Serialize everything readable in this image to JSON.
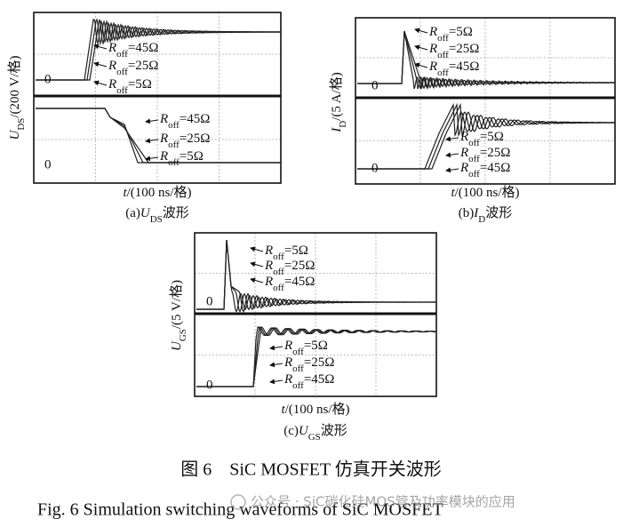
{
  "panels": [
    {
      "y_label": {
        "symbol": "U",
        "sub": "DS",
        "unit": "/(200 V/格)"
      },
      "zero_top": "0",
      "zero_bottom": "0",
      "top_labels": [
        {
          "symbol": "R",
          "sub": "off",
          "value": "=45Ω"
        },
        {
          "symbol": "R",
          "sub": "off",
          "value": "=25Ω"
        },
        {
          "symbol": "R",
          "sub": "off",
          "value": "=5Ω"
        }
      ],
      "bottom_labels": [
        {
          "symbol": "R",
          "sub": "off",
          "value": "=45Ω"
        },
        {
          "symbol": "R",
          "sub": "off",
          "value": "=25Ω"
        },
        {
          "symbol": "R",
          "sub": "off",
          "value": "=5Ω"
        }
      ],
      "x_label": {
        "symbol": "t",
        "unit": "/(100 ns/格)"
      },
      "caption": {
        "prefix": "(a)",
        "symbol": "U",
        "sub": "DS",
        "suffix": "波形"
      }
    },
    {
      "y_label": {
        "symbol": "I",
        "sub": "D",
        "unit": "/(5 A/格)"
      },
      "zero_top": "0",
      "zero_bottom": "0",
      "top_labels": [
        {
          "symbol": "R",
          "sub": "off",
          "value": "=5Ω"
        },
        {
          "symbol": "R",
          "sub": "off",
          "value": "=25Ω"
        },
        {
          "symbol": "R",
          "sub": "off",
          "value": "=45Ω"
        }
      ],
      "bottom_labels": [
        {
          "symbol": "R",
          "sub": "off",
          "value": "=5Ω"
        },
        {
          "symbol": "R",
          "sub": "off",
          "value": "=25Ω"
        },
        {
          "symbol": "R",
          "sub": "off",
          "value": "=45Ω"
        }
      ],
      "x_label": {
        "symbol": "t",
        "unit": "/(100 ns/格)"
      },
      "caption": {
        "prefix": "(b)",
        "symbol": "I",
        "sub": "D",
        "suffix": "波形"
      }
    },
    {
      "y_label": {
        "symbol": "U",
        "sub": "GS",
        "unit": "/(5 V/格)"
      },
      "zero_top": "0",
      "zero_bottom": "0",
      "top_labels": [
        {
          "symbol": "R",
          "sub": "off",
          "value": "=5Ω"
        },
        {
          "symbol": "R",
          "sub": "off",
          "value": "=25Ω"
        },
        {
          "symbol": "R",
          "sub": "off",
          "value": "=45Ω"
        }
      ],
      "bottom_labels": [
        {
          "symbol": "R",
          "sub": "off",
          "value": "=5Ω"
        },
        {
          "symbol": "R",
          "sub": "off",
          "value": "=25Ω"
        },
        {
          "symbol": "R",
          "sub": "off",
          "value": "=45Ω"
        }
      ],
      "x_label": {
        "symbol": "t",
        "unit": "/(100 ns/格)"
      },
      "caption": {
        "prefix": "(c)",
        "symbol": "U",
        "sub": "GS",
        "suffix": "波形"
      }
    }
  ],
  "figure_caption_cn": "图 6　SiC MOSFET 仿真开关波形",
  "figure_caption_en": "Fig. 6 Simulation switching waveforms of SiC MOSFET",
  "watermark": "公众号 · SiC碳化硅MOS管及功率模块的应用"
}
